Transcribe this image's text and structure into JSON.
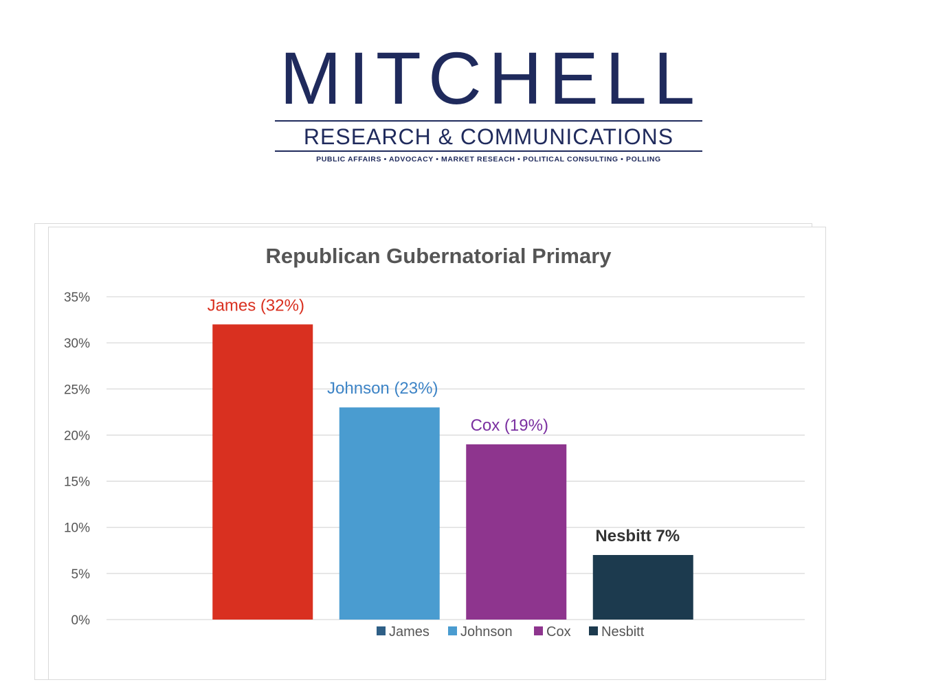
{
  "logo": {
    "name": "MITCHELL",
    "subtitle": "RESEARCH & COMMUNICATIONS",
    "tagline": "PUBLIC AFFAIRS  •  ADVOCACY  •  MARKET RESEACH  •  POLITICAL CONSULTING  •  POLLING",
    "color": "#1f2a5c"
  },
  "chart_data": {
    "type": "bar",
    "title": "Republican Gubernatorial Primary",
    "xlabel": "",
    "ylabel": "",
    "ylim": [
      0,
      35
    ],
    "yticks": [
      0,
      5,
      10,
      15,
      20,
      25,
      30,
      35
    ],
    "ytick_labels": [
      "0%",
      "5%",
      "10%",
      "15%",
      "20%",
      "25%",
      "30%",
      "35%"
    ],
    "grid": true,
    "legend_position": "bottom",
    "categories": [
      "James",
      "Johnson",
      "Cox",
      "Nesbitt"
    ],
    "values": [
      32,
      23,
      19,
      7
    ],
    "data_labels": [
      "James (32%)",
      "Johnson (23%)",
      "Cox (19%)",
      "Nesbitt 7%"
    ],
    "bar_colors": [
      "#d93020",
      "#4a9cd0",
      "#8e358e",
      "#1c3a4e"
    ],
    "label_colors": [
      "#d93020",
      "#3d84c6",
      "#7a2fa0",
      "#333333"
    ],
    "legend_colors": [
      "#2e5f86",
      "#4a9cd0",
      "#8e358e",
      "#1c3a4e"
    ]
  }
}
